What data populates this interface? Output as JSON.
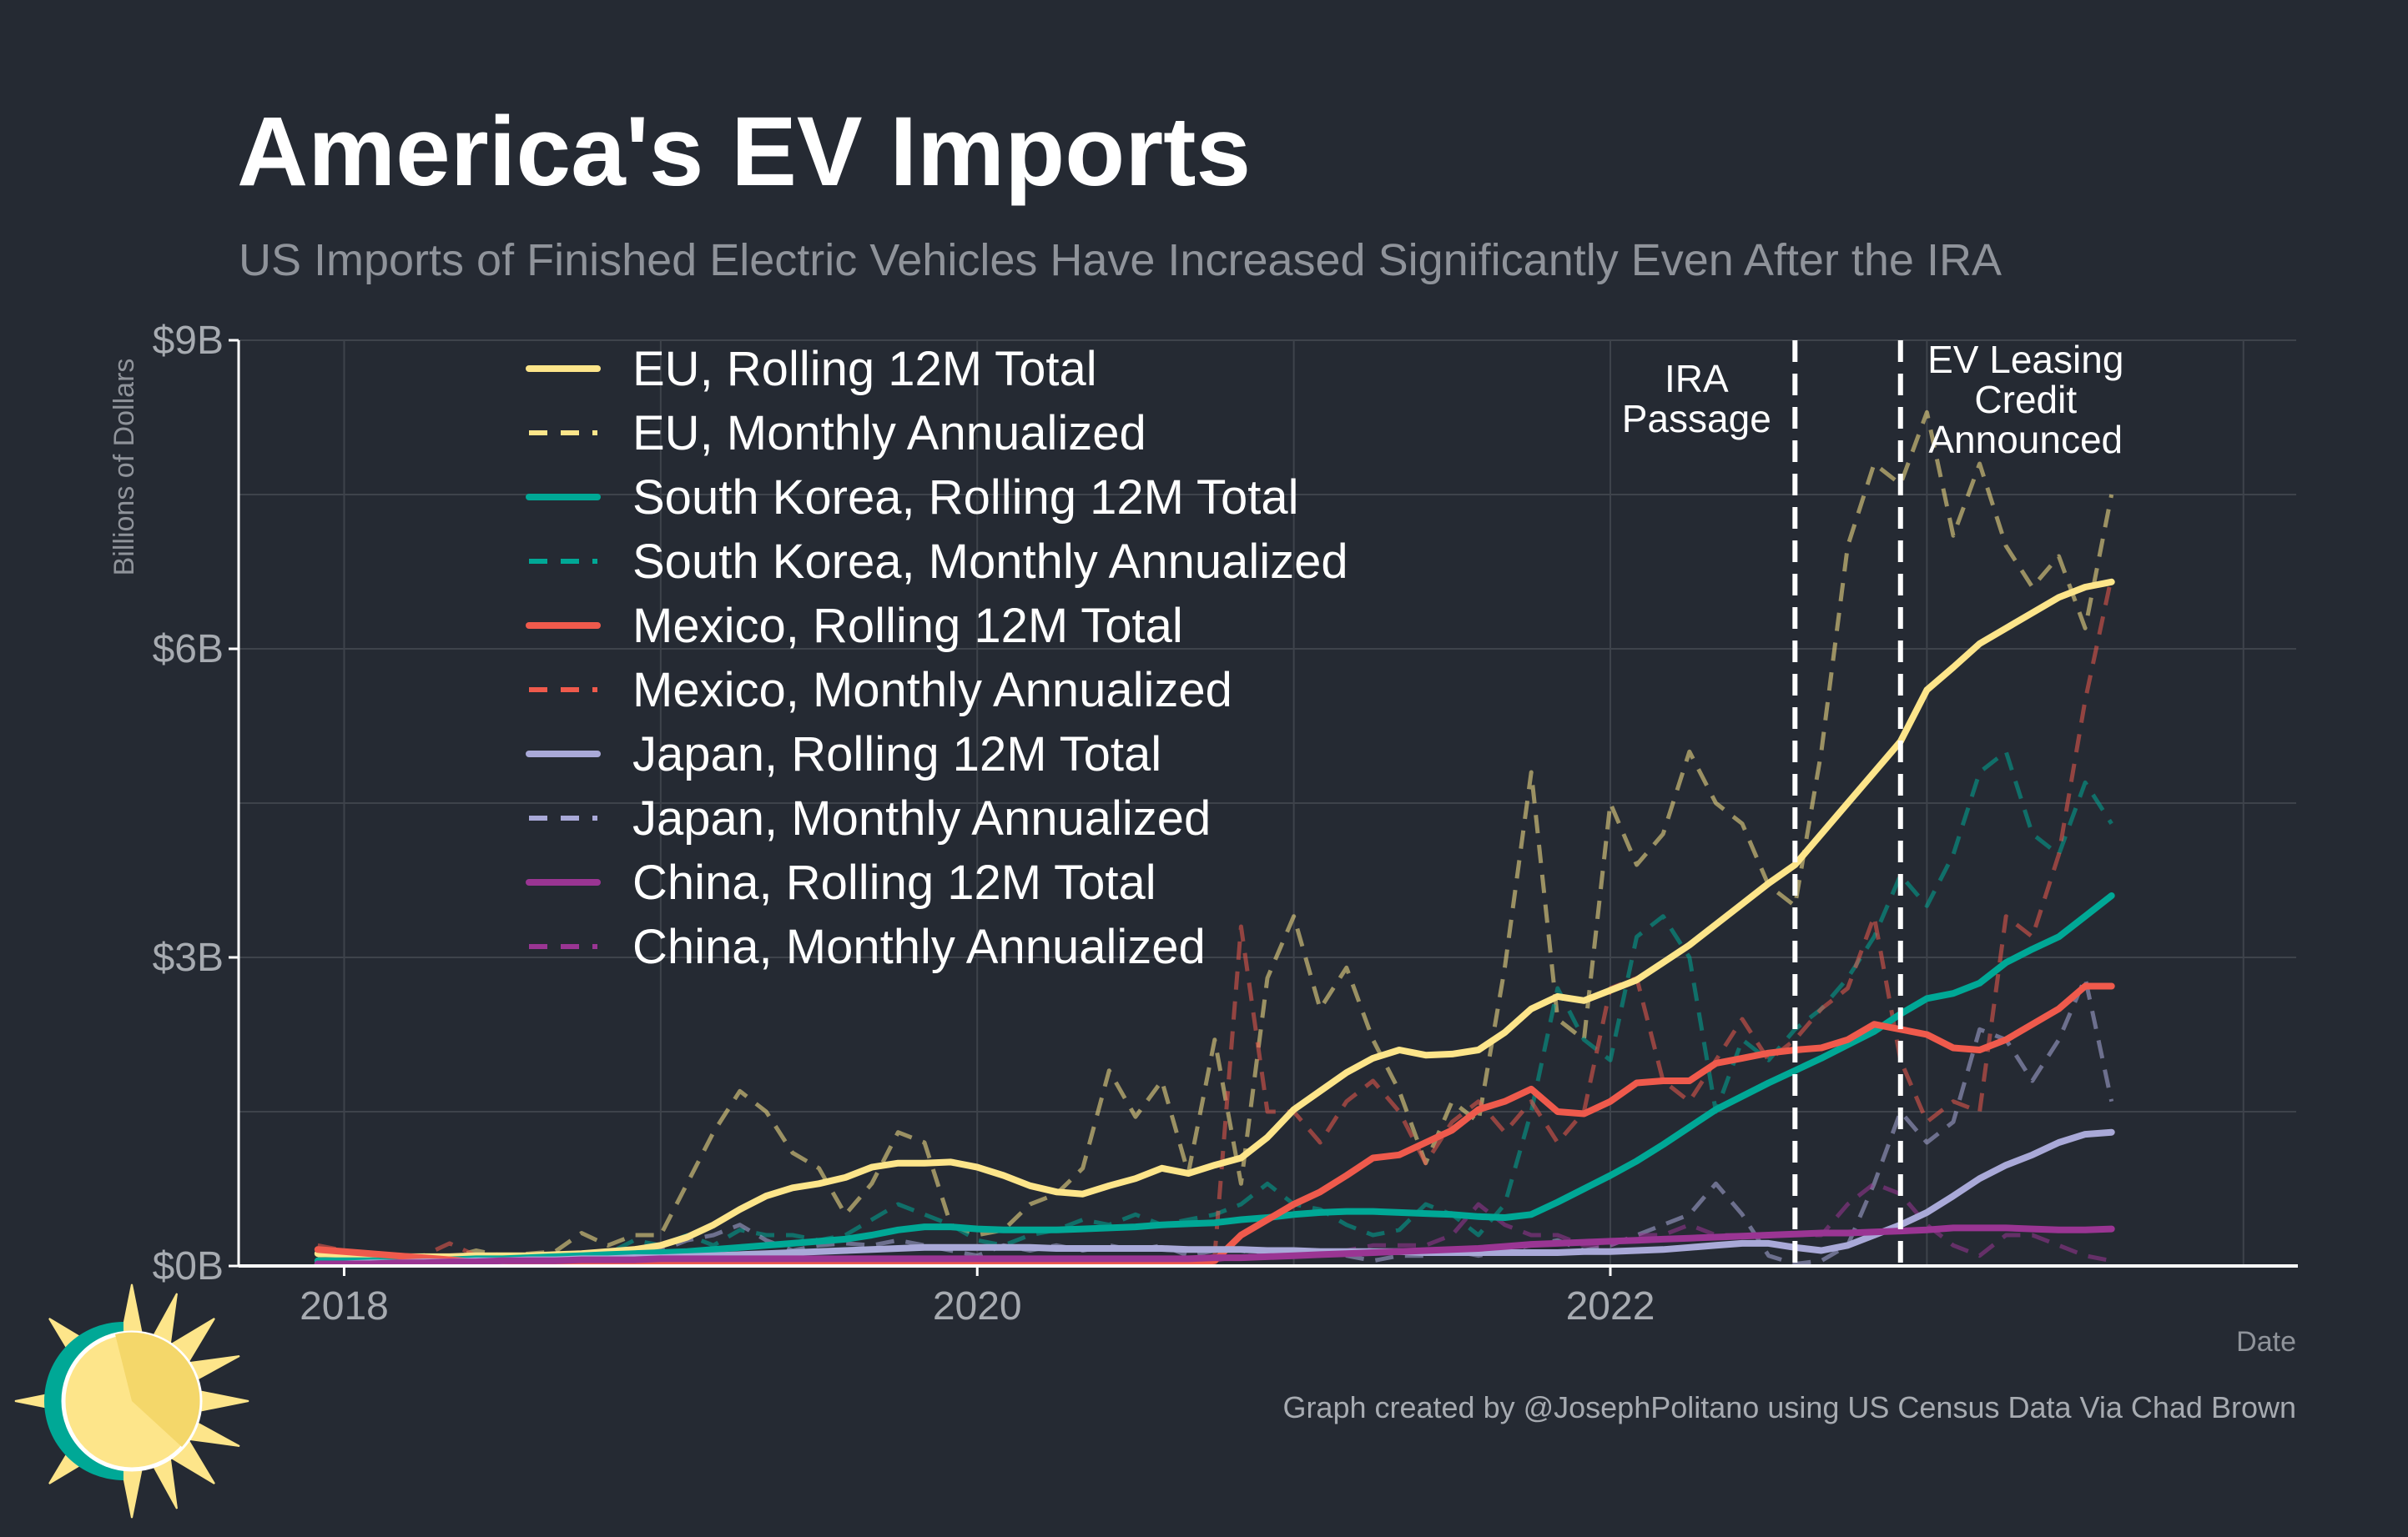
{
  "page": {
    "title": "America's EV Imports",
    "subtitle": "US Imports of Finished Electric Vehicles Have Increased Significantly Even After the IRA",
    "credit": "Graph created by @JosephPolitano using US Census Data Via Chad Brown",
    "logo_icon": "sun-logo-icon"
  },
  "colors": {
    "background": "#252a33",
    "grid": "#3e434b",
    "axis": "#ffffff",
    "EU": "#fde58a",
    "South Korea": "#00a896",
    "Mexico": "#ef5a4c",
    "Japan": "#a9a9d8",
    "China": "#9a3593"
  },
  "chart_data": {
    "type": "line",
    "title": "America's EV Imports",
    "subtitle": "US Imports of Finished Electric Vehicles Have Increased Significantly Even After the IRA",
    "xlabel": "Date",
    "ylabel": "Billions of Dollars",
    "xlim": [
      "2017-09",
      "2024-03"
    ],
    "ylim": [
      0,
      9
    ],
    "x_ticks": [
      {
        "label": "2018",
        "value": "2018-01"
      },
      {
        "label": "2020",
        "value": "2020-01"
      },
      {
        "label": "2022",
        "value": "2022-01"
      }
    ],
    "y_ticks": [
      {
        "label": "$0B",
        "value": 0
      },
      {
        "label": "$3B",
        "value": 3
      },
      {
        "label": "$6B",
        "value": 6
      },
      {
        "label": "$9B",
        "value": 9
      }
    ],
    "grid": true,
    "legend_position": "top-left",
    "annotations": [
      {
        "date": "2022-08",
        "lines": [
          "IRA",
          "Passage"
        ],
        "text_side": "left"
      },
      {
        "date": "2022-12",
        "lines": [
          "EV Leasing",
          "Credit",
          "Announced"
        ],
        "text_side": "right"
      }
    ],
    "x": [
      "2017-12",
      "2018-01",
      "2018-02",
      "2018-03",
      "2018-04",
      "2018-05",
      "2018-06",
      "2018-07",
      "2018-08",
      "2018-09",
      "2018-10",
      "2018-11",
      "2018-12",
      "2019-01",
      "2019-02",
      "2019-03",
      "2019-04",
      "2019-05",
      "2019-06",
      "2019-07",
      "2019-08",
      "2019-09",
      "2019-10",
      "2019-11",
      "2019-12",
      "2020-01",
      "2020-02",
      "2020-03",
      "2020-04",
      "2020-05",
      "2020-06",
      "2020-07",
      "2020-08",
      "2020-09",
      "2020-10",
      "2020-11",
      "2020-12",
      "2021-01",
      "2021-02",
      "2021-03",
      "2021-04",
      "2021-05",
      "2021-06",
      "2021-07",
      "2021-08",
      "2021-09",
      "2021-10",
      "2021-11",
      "2021-12",
      "2022-01",
      "2022-02",
      "2022-03",
      "2022-04",
      "2022-05",
      "2022-06",
      "2022-07",
      "2022-08",
      "2022-09",
      "2022-10",
      "2022-11",
      "2022-12",
      "2023-01",
      "2023-02",
      "2023-03",
      "2023-04",
      "2023-05",
      "2023-06",
      "2023-07",
      "2023-08"
    ],
    "series": [
      {
        "name": "EU, Rolling 12M Total",
        "country": "EU",
        "style": "solid",
        "values": [
          0.12,
          0.11,
          0.1,
          0.09,
          0.09,
          0.09,
          0.1,
          0.1,
          0.1,
          0.11,
          0.12,
          0.14,
          0.16,
          0.2,
          0.28,
          0.4,
          0.55,
          0.68,
          0.76,
          0.8,
          0.86,
          0.96,
          1.0,
          1.0,
          1.01,
          0.96,
          0.88,
          0.78,
          0.72,
          0.7,
          0.78,
          0.85,
          0.95,
          0.9,
          0.98,
          1.05,
          1.25,
          1.52,
          1.7,
          1.88,
          2.02,
          2.1,
          2.05,
          2.06,
          2.1,
          2.27,
          2.5,
          2.62,
          2.58,
          2.68,
          2.78,
          2.95,
          3.12,
          3.32,
          3.52,
          3.72,
          3.9,
          4.2,
          4.5,
          4.8,
          5.1,
          5.6,
          5.82,
          6.05,
          6.2,
          6.35,
          6.5,
          6.6,
          6.65
        ]
      },
      {
        "name": "EU, Monthly Annualized",
        "country": "EU",
        "style": "dashed",
        "values": [
          0.1,
          0.12,
          0.08,
          0.1,
          0.09,
          0.08,
          0.15,
          0.1,
          0.12,
          0.14,
          0.32,
          0.2,
          0.3,
          0.3,
          0.8,
          1.3,
          1.7,
          1.5,
          1.1,
          0.95,
          0.5,
          0.8,
          1.3,
          1.2,
          0.4,
          0.3,
          0.35,
          0.6,
          0.7,
          0.95,
          1.9,
          1.45,
          1.8,
          0.9,
          2.2,
          0.8,
          2.8,
          3.4,
          2.5,
          2.9,
          2.2,
          1.7,
          1.0,
          1.6,
          1.4,
          2.9,
          4.8,
          2.4,
          2.2,
          4.5,
          3.9,
          4.2,
          5.0,
          4.5,
          4.3,
          3.7,
          3.5,
          5.0,
          7.0,
          7.8,
          7.6,
          8.3,
          7.1,
          7.8,
          7.0,
          6.6,
          6.9,
          6.2,
          7.5
        ]
      },
      {
        "name": "South Korea, Rolling 12M Total",
        "country": "South Korea",
        "style": "solid",
        "values": [
          0.05,
          0.05,
          0.05,
          0.05,
          0.06,
          0.06,
          0.07,
          0.07,
          0.08,
          0.09,
          0.1,
          0.11,
          0.12,
          0.13,
          0.14,
          0.16,
          0.18,
          0.2,
          0.22,
          0.24,
          0.26,
          0.3,
          0.35,
          0.38,
          0.38,
          0.36,
          0.35,
          0.35,
          0.35,
          0.36,
          0.37,
          0.38,
          0.4,
          0.41,
          0.42,
          0.45,
          0.47,
          0.5,
          0.52,
          0.53,
          0.53,
          0.52,
          0.51,
          0.5,
          0.48,
          0.47,
          0.5,
          0.62,
          0.75,
          0.88,
          1.02,
          1.18,
          1.35,
          1.52,
          1.65,
          1.78,
          1.9,
          2.02,
          2.15,
          2.28,
          2.45,
          2.6,
          2.65,
          2.75,
          2.95,
          3.08,
          3.2,
          3.4,
          3.6
        ]
      },
      {
        "name": "South Korea, Monthly Annualized",
        "country": "South Korea",
        "style": "dashed",
        "values": [
          0.05,
          0.05,
          0.05,
          0.06,
          0.06,
          0.07,
          0.07,
          0.08,
          0.09,
          0.1,
          0.11,
          0.12,
          0.25,
          0.2,
          0.3,
          0.2,
          0.35,
          0.3,
          0.3,
          0.25,
          0.3,
          0.45,
          0.6,
          0.5,
          0.4,
          0.25,
          0.2,
          0.3,
          0.35,
          0.45,
          0.4,
          0.5,
          0.4,
          0.45,
          0.5,
          0.6,
          0.8,
          0.6,
          0.55,
          0.4,
          0.3,
          0.35,
          0.6,
          0.5,
          0.3,
          0.6,
          1.5,
          2.7,
          2.2,
          2.0,
          3.2,
          3.4,
          3.0,
          1.5,
          2.2,
          2.0,
          2.3,
          2.5,
          2.8,
          3.2,
          3.8,
          3.5,
          4.0,
          4.8,
          5.0,
          4.2,
          4.0,
          4.7,
          4.3
        ]
      },
      {
        "name": "Mexico, Rolling 12M Total",
        "country": "Mexico",
        "style": "solid",
        "values": [
          0.16,
          0.14,
          0.12,
          0.1,
          0.08,
          0.06,
          0.04,
          0.03,
          0.02,
          0.02,
          0.02,
          0.02,
          0.02,
          0.02,
          0.02,
          0.02,
          0.02,
          0.02,
          0.02,
          0.02,
          0.02,
          0.02,
          0.02,
          0.02,
          0.02,
          0.02,
          0.02,
          0.02,
          0.02,
          0.02,
          0.02,
          0.02,
          0.02,
          0.03,
          0.05,
          0.3,
          0.45,
          0.6,
          0.72,
          0.88,
          1.05,
          1.08,
          1.2,
          1.32,
          1.52,
          1.6,
          1.72,
          1.5,
          1.48,
          1.6,
          1.78,
          1.8,
          1.8,
          1.97,
          2.02,
          2.07,
          2.1,
          2.12,
          2.2,
          2.35,
          2.3,
          2.25,
          2.12,
          2.1,
          2.2,
          2.35,
          2.5,
          2.72,
          2.72
        ]
      },
      {
        "name": "Mexico, Monthly Annualized",
        "country": "Mexico",
        "style": "dashed",
        "values": [
          0.2,
          0.15,
          0.12,
          0.1,
          0.1,
          0.22,
          0.1,
          0.05,
          0.03,
          0.02,
          0.02,
          0.02,
          0.02,
          0.02,
          0.02,
          0.02,
          0.02,
          0.02,
          0.02,
          0.02,
          0.02,
          0.02,
          0.02,
          0.02,
          0.02,
          0.02,
          0.02,
          0.02,
          0.02,
          0.02,
          0.02,
          0.02,
          0.02,
          0.05,
          0.1,
          3.3,
          1.5,
          1.5,
          1.2,
          1.6,
          1.8,
          1.5,
          1.0,
          1.4,
          1.6,
          1.3,
          1.6,
          1.2,
          1.5,
          2.7,
          2.8,
          1.8,
          1.6,
          2.0,
          2.4,
          2.0,
          2.2,
          2.5,
          2.7,
          3.4,
          2.0,
          1.4,
          1.6,
          1.5,
          3.4,
          3.2,
          4.0,
          5.5,
          6.7
        ]
      },
      {
        "name": "Japan, Rolling 12M Total",
        "country": "Japan",
        "style": "solid",
        "values": [
          0.02,
          0.02,
          0.03,
          0.03,
          0.04,
          0.04,
          0.05,
          0.05,
          0.06,
          0.06,
          0.07,
          0.07,
          0.08,
          0.08,
          0.09,
          0.1,
          0.11,
          0.12,
          0.13,
          0.14,
          0.15,
          0.16,
          0.17,
          0.18,
          0.18,
          0.18,
          0.18,
          0.18,
          0.17,
          0.17,
          0.17,
          0.17,
          0.17,
          0.16,
          0.16,
          0.16,
          0.15,
          0.15,
          0.14,
          0.14,
          0.14,
          0.14,
          0.13,
          0.13,
          0.13,
          0.13,
          0.13,
          0.13,
          0.14,
          0.14,
          0.15,
          0.16,
          0.18,
          0.2,
          0.22,
          0.22,
          0.18,
          0.15,
          0.2,
          0.3,
          0.4,
          0.52,
          0.68,
          0.85,
          0.98,
          1.08,
          1.2,
          1.28,
          1.3
        ]
      },
      {
        "name": "Japan, Monthly Annualized",
        "country": "Japan",
        "style": "dashed",
        "values": [
          0.02,
          0.02,
          0.04,
          0.03,
          0.05,
          0.04,
          0.06,
          0.05,
          0.07,
          0.06,
          0.08,
          0.07,
          0.1,
          0.15,
          0.25,
          0.3,
          0.4,
          0.25,
          0.15,
          0.2,
          0.22,
          0.2,
          0.25,
          0.2,
          0.15,
          0.1,
          0.2,
          0.15,
          0.2,
          0.15,
          0.2,
          0.15,
          0.2,
          0.1,
          0.15,
          0.15,
          0.1,
          0.1,
          0.15,
          0.1,
          0.05,
          0.1,
          0.1,
          0.15,
          0.1,
          0.15,
          0.2,
          0.25,
          0.15,
          0.2,
          0.3,
          0.4,
          0.5,
          0.8,
          0.5,
          0.1,
          0.02,
          0.05,
          0.2,
          0.8,
          1.5,
          1.2,
          1.4,
          2.3,
          2.2,
          1.8,
          2.2,
          2.8,
          1.6
        ]
      },
      {
        "name": "China, Rolling 12M Total",
        "country": "China",
        "style": "solid",
        "values": [
          0.02,
          0.02,
          0.02,
          0.03,
          0.03,
          0.04,
          0.04,
          0.05,
          0.05,
          0.05,
          0.06,
          0.06,
          0.06,
          0.07,
          0.07,
          0.07,
          0.07,
          0.07,
          0.07,
          0.07,
          0.07,
          0.07,
          0.07,
          0.07,
          0.07,
          0.07,
          0.07,
          0.07,
          0.07,
          0.07,
          0.07,
          0.07,
          0.07,
          0.07,
          0.08,
          0.08,
          0.09,
          0.1,
          0.11,
          0.12,
          0.13,
          0.14,
          0.15,
          0.16,
          0.17,
          0.19,
          0.21,
          0.22,
          0.23,
          0.24,
          0.25,
          0.26,
          0.27,
          0.28,
          0.29,
          0.3,
          0.31,
          0.32,
          0.32,
          0.33,
          0.34,
          0.35,
          0.37,
          0.37,
          0.37,
          0.36,
          0.35,
          0.35,
          0.36
        ]
      },
      {
        "name": "China, Monthly Annualized",
        "country": "China",
        "style": "dashed",
        "values": [
          0.05,
          0.05,
          0.05,
          0.05,
          0.05,
          0.05,
          0.05,
          0.05,
          0.05,
          0.05,
          0.05,
          0.05,
          0.05,
          0.05,
          0.05,
          0.05,
          0.05,
          0.05,
          0.05,
          0.05,
          0.05,
          0.05,
          0.05,
          0.05,
          0.05,
          0.05,
          0.05,
          0.05,
          0.05,
          0.05,
          0.05,
          0.05,
          0.05,
          0.05,
          0.05,
          0.1,
          0.1,
          0.1,
          0.1,
          0.15,
          0.2,
          0.2,
          0.2,
          0.3,
          0.6,
          0.4,
          0.3,
          0.3,
          0.2,
          0.2,
          0.3,
          0.3,
          0.4,
          0.3,
          0.3,
          0.3,
          0.3,
          0.3,
          0.6,
          0.8,
          0.7,
          0.4,
          0.2,
          0.1,
          0.3,
          0.3,
          0.2,
          0.1,
          0.05
        ]
      }
    ]
  }
}
